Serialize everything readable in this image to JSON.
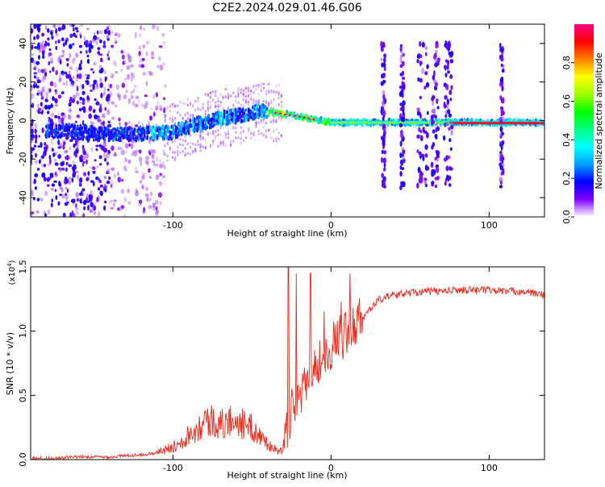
{
  "title": "C2E2.2024.029.01.46.G06",
  "chart_data": [
    {
      "type": "heatmap",
      "title": "C2E2.2024.029.01.46.G06",
      "xlabel": "Height of straight line (km)",
      "ylabel": "Frequency (Hz)",
      "xlim": [
        -190,
        135
      ],
      "ylim": [
        -50,
        50
      ],
      "xticks": [
        -100,
        0,
        100
      ],
      "yticks": [
        -40,
        -20,
        0,
        20,
        40
      ],
      "xtick_labels": [
        "-100",
        "0",
        "100"
      ],
      "ytick_labels": [
        "-40",
        "-20",
        "0",
        "20",
        "40"
      ],
      "ridge": {
        "description": "frequency of the strongest spectral component vs height",
        "x": [
          -185,
          -160,
          -140,
          -120,
          -100,
          -85,
          -70,
          -55,
          -45,
          -35,
          -20,
          0,
          20,
          40,
          60,
          80,
          100,
          120,
          135
        ],
        "y": [
          -5,
          -6,
          -7,
          -7,
          -6,
          -2,
          1,
          3,
          5,
          4,
          2,
          -1,
          -1,
          -1,
          -1,
          -1,
          -1,
          -1,
          -1
        ]
      },
      "colorbar": {
        "label": "Normalized spectral amplitude",
        "range": [
          0,
          1
        ],
        "ticks": [
          0.0,
          0.2,
          0.4,
          0.6,
          0.8
        ],
        "tick_labels": [
          "0.0",
          "0.2",
          "0.4",
          "0.6",
          "0.8"
        ],
        "colormap": [
          "#ffffff",
          "#7f00ff",
          "#0000ff",
          "#00a0ff",
          "#00ffff",
          "#00ff80",
          "#00ff00",
          "#a0ff00",
          "#ffff00",
          "#ff8000",
          "#ff0000",
          "#ff0080"
        ]
      }
    },
    {
      "type": "line",
      "xlabel": "Height of straight line (km)",
      "ylabel": "SNR (10 * v/v)",
      "ymultiplier": "(x10",
      "ymultiplier_exp": "4",
      "ymultiplier_close": ")",
      "xlim": [
        -190,
        135
      ],
      "ylim": [
        0,
        1.5
      ],
      "xticks": [
        -100,
        0,
        100
      ],
      "yticks": [
        0.0,
        0.5,
        1.0,
        1.5
      ],
      "xtick_labels": [
        "-100",
        "0",
        "100"
      ],
      "ytick_labels": [
        "0.0",
        "0.5",
        "1.0",
        "1.5"
      ],
      "color": "#e8291c",
      "series": [
        {
          "name": "SNR",
          "x": [
            -190,
            -175,
            -160,
            -150,
            -140,
            -130,
            -120,
            -110,
            -105,
            -100,
            -95,
            -90,
            -85,
            -80,
            -75,
            -70,
            -65,
            -60,
            -55,
            -50,
            -45,
            -40,
            -35,
            -30,
            -28,
            -25,
            -22,
            -20,
            -15,
            -10,
            -5,
            0,
            5,
            10,
            15,
            20,
            25,
            30,
            35,
            40,
            50,
            60,
            70,
            80,
            90,
            100,
            110,
            120,
            130,
            135
          ],
          "y": [
            0.01,
            0.01,
            0.02,
            0.02,
            0.02,
            0.03,
            0.04,
            0.05,
            0.06,
            0.08,
            0.12,
            0.16,
            0.2,
            0.24,
            0.25,
            0.22,
            0.24,
            0.26,
            0.22,
            0.2,
            0.15,
            0.1,
            0.06,
            0.05,
            0.2,
            0.35,
            0.42,
            0.5,
            0.6,
            0.72,
            0.78,
            0.85,
            0.95,
            0.98,
            1.05,
            1.1,
            1.18,
            1.24,
            1.27,
            1.28,
            1.3,
            1.31,
            1.31,
            1.32,
            1.32,
            1.32,
            1.31,
            1.31,
            1.29,
            1.28
          ]
        }
      ]
    }
  ]
}
